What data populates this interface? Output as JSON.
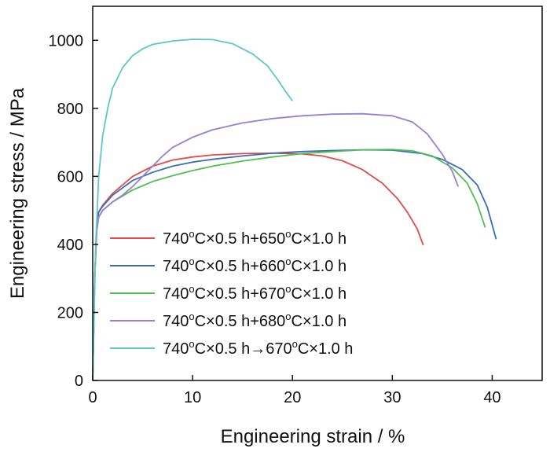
{
  "chart_data": {
    "type": "line",
    "title": "",
    "xlabel": "Engineering strain / %",
    "ylabel": "Engineering stress / MPa",
    "xlim": [
      0,
      45
    ],
    "ylim": [
      0,
      1100
    ],
    "xticks": [
      0,
      10,
      20,
      30,
      40
    ],
    "yticks": [
      0,
      200,
      400,
      600,
      800,
      1000
    ],
    "grid": false,
    "legend_position": "bottom-center",
    "series": [
      {
        "name": "740°C×0.5 h+650°C×1.0 h",
        "label_parts": [
          "740",
          "o",
          "C×0.5 h+650",
          "o",
          "C×1.0 h"
        ],
        "color": "#e34a4a",
        "x": [
          0,
          0.2,
          0.4,
          0.6,
          1,
          2,
          4,
          6,
          8,
          10,
          12,
          15,
          18,
          21,
          23,
          25,
          27,
          29,
          30.5,
          31.5,
          32.5,
          33.1
        ],
        "y": [
          0,
          300,
          450,
          495,
          515,
          550,
          600,
          630,
          648,
          657,
          663,
          667,
          668,
          666,
          660,
          646,
          620,
          580,
          535,
          495,
          445,
          398
        ]
      },
      {
        "name": "740°C×0.5 h+660°C×1.0 h",
        "label_parts": [
          "740",
          "o",
          "C×0.5 h+660",
          "o",
          "C×1.0 h"
        ],
        "color": "#3a6db5",
        "x": [
          0,
          0.2,
          0.4,
          0.6,
          1,
          2,
          4,
          6,
          8,
          10,
          12,
          15,
          18,
          21,
          24,
          27,
          30,
          33,
          35,
          37,
          38.5,
          39.5,
          40.4
        ],
        "y": [
          0,
          300,
          450,
          495,
          512,
          545,
          588,
          612,
          630,
          642,
          650,
          660,
          668,
          673,
          676,
          678,
          677,
          667,
          650,
          620,
          575,
          510,
          415
        ]
      },
      {
        "name": "740°C×0.5 h+670°C×1.0 h",
        "label_parts": [
          "740",
          "o",
          "C×0.5 h+670",
          "o",
          "C×1.0 h"
        ],
        "color": "#4fbf56",
        "x": [
          0,
          0.2,
          0.4,
          0.6,
          1,
          2,
          4,
          6,
          8,
          10,
          12,
          15,
          18,
          21,
          24,
          27,
          30,
          32,
          34,
          36,
          37.5,
          38.5,
          39.3
        ],
        "y": [
          0,
          300,
          440,
          480,
          500,
          525,
          560,
          585,
          602,
          617,
          630,
          645,
          657,
          667,
          673,
          678,
          679,
          675,
          660,
          625,
          580,
          520,
          450
        ]
      },
      {
        "name": "740°C×0.5 h+680°C×1.0 h",
        "label_parts": [
          "740",
          "o",
          "C×0.5 h+680",
          "o",
          "C×1.0 h"
        ],
        "color": "#9a7fd0",
        "x": [
          0,
          0.2,
          0.4,
          0.6,
          1,
          2,
          3,
          4,
          5,
          6,
          7,
          8,
          10,
          12,
          15,
          18,
          21,
          24,
          27,
          30,
          32,
          33.5,
          35,
          36,
          36.6
        ],
        "y": [
          0,
          300,
          440,
          480,
          500,
          525,
          545,
          570,
          600,
          630,
          660,
          685,
          715,
          737,
          757,
          770,
          778,
          783,
          784,
          778,
          760,
          725,
          665,
          615,
          570
        ]
      },
      {
        "name": "740°C×0.5 h→670°C×1.0 h",
        "label_parts": [
          "740",
          "o",
          "C×0.5 h→670",
          "o",
          "C×1.0 h"
        ],
        "color": "#5cc8c4",
        "x": [
          0,
          0.3,
          0.6,
          1,
          1.5,
          2,
          3,
          4,
          5,
          6,
          8,
          10,
          12,
          14,
          16,
          17.5,
          18.5,
          19.3,
          20
        ],
        "y": [
          0,
          400,
          600,
          720,
          800,
          860,
          920,
          955,
          975,
          988,
          998,
          1003,
          1002,
          990,
          960,
          925,
          885,
          850,
          822
        ]
      }
    ]
  }
}
